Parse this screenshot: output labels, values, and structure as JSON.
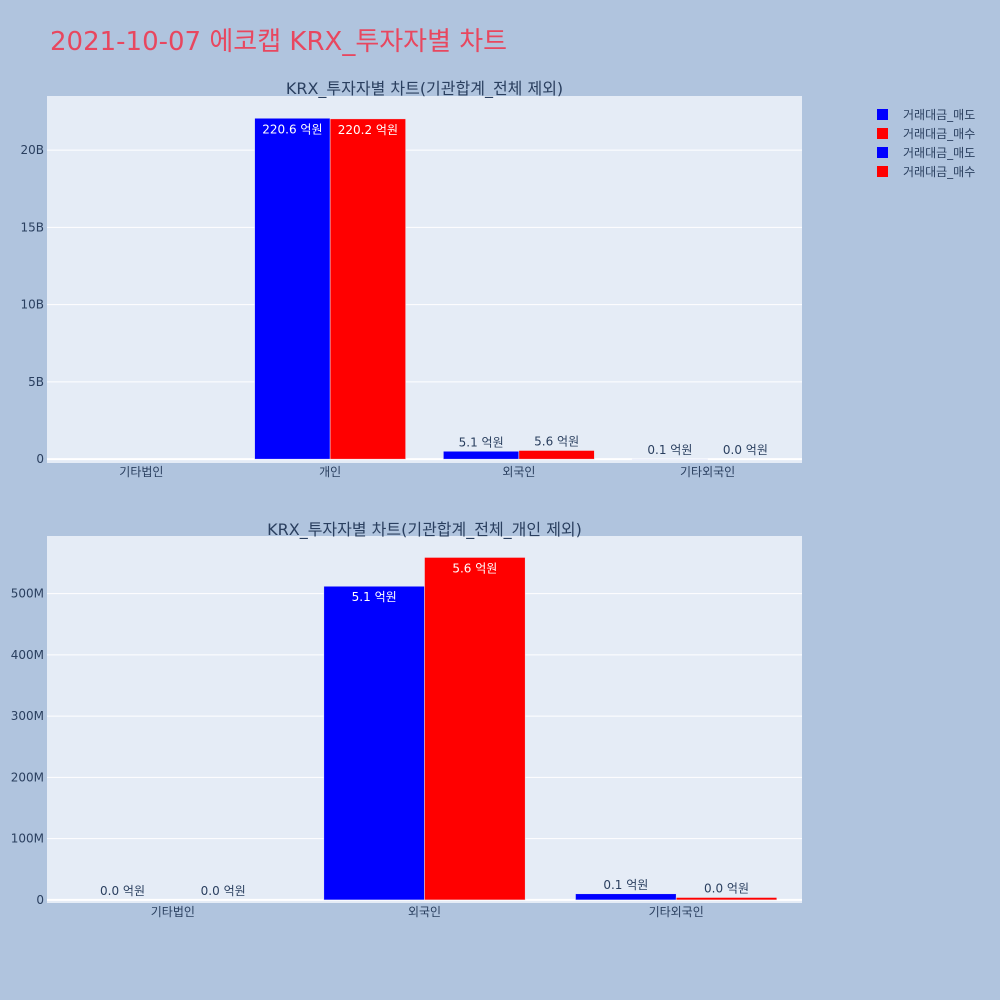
{
  "title": "2021-10-07 에코캡 KRX_투자자별 차트",
  "colors": {
    "page_bg": "#b0c4de",
    "plot_bg": "#e5ecf6",
    "title": "#e8475f",
    "text": "#2a3f5f",
    "sell": "#0000ff",
    "buy": "#ff0000",
    "grid": "#ffffff"
  },
  "legend": [
    {
      "label": "거래대금_매도",
      "color": "#0000ff"
    },
    {
      "label": "거래대금_매수",
      "color": "#ff0000"
    },
    {
      "label": "거래대금_매도",
      "color": "#0000ff"
    },
    {
      "label": "거래대금_매수",
      "color": "#ff0000"
    }
  ],
  "chart_data": [
    {
      "type": "bar",
      "title": "KRX_투자자별 차트(기관합계_전체 제외)",
      "categories": [
        "기타법인",
        "개인",
        "외국인",
        "기타외국인"
      ],
      "series": [
        {
          "name": "거래대금_매도",
          "color": "#0000ff",
          "values": [
            0,
            22060000000,
            510000000,
            10000000
          ],
          "labels": [
            "",
            "220.6 억원",
            "5.1 억원",
            "0.1 억원"
          ]
        },
        {
          "name": "거래대금_매수",
          "color": "#ff0000",
          "values": [
            0,
            22020000000,
            560000000,
            0
          ],
          "labels": [
            "",
            "220.2 억원",
            "5.6 억원",
            "0.0 억원"
          ]
        }
      ],
      "ylim": [
        -250000000,
        23500000000
      ],
      "yticks": [
        0,
        5000000000,
        10000000000,
        15000000000,
        20000000000
      ],
      "ytick_labels": [
        "0",
        "5B",
        "10B",
        "15B",
        "20B"
      ],
      "grid": true
    },
    {
      "type": "bar",
      "title": "KRX_투자자별 차트(기관합계_전체_개인 제외)",
      "categories": [
        "기타법인",
        "외국인",
        "기타외국인"
      ],
      "series": [
        {
          "name": "거래대금_매도",
          "color": "#0000ff",
          "values": [
            0,
            512000000,
            10000000
          ],
          "labels": [
            "0.0 억원",
            "5.1 억원",
            "0.1 억원"
          ]
        },
        {
          "name": "거래대금_매수",
          "color": "#ff0000",
          "values": [
            0,
            559000000,
            4000000
          ],
          "labels": [
            "0.0 억원",
            "5.6 억원",
            "0.0 억원"
          ]
        }
      ],
      "ylim": [
        -5000000,
        594000000
      ],
      "yticks": [
        0,
        100000000,
        200000000,
        300000000,
        400000000,
        500000000
      ],
      "ytick_labels": [
        "0",
        "100M",
        "200M",
        "300M",
        "400M",
        "500M"
      ],
      "grid": true
    }
  ]
}
